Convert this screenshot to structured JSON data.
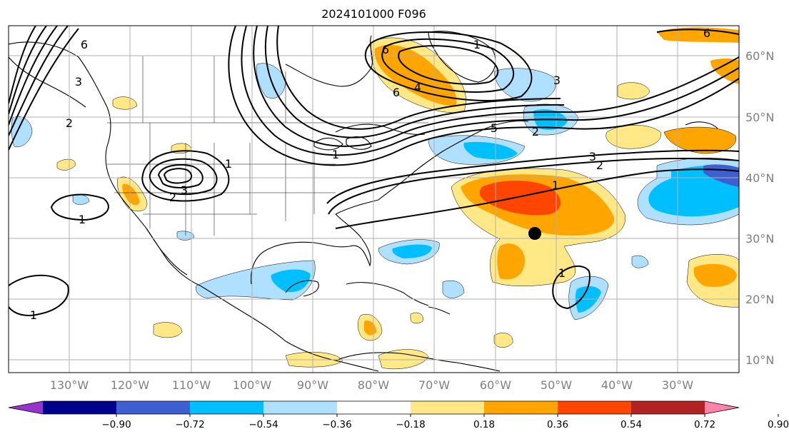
{
  "title": "2024101000 F096",
  "latitude_labels": [
    "60°N",
    "50°N",
    "40°N",
    "30°N",
    "20°N",
    "10°N"
  ],
  "longitude_labels": [
    "130°W",
    "120°W",
    "110°W",
    "100°W",
    "90°W",
    "80°W",
    "70°W",
    "60°W",
    "50°W",
    "40°W",
    "30°W"
  ],
  "colorbar": {
    "levels": [
      "−0.90",
      "−0.72",
      "−0.54",
      "−0.36",
      "−0.18",
      "0.18",
      "0.36",
      "0.54",
      "0.72",
      "0.90"
    ],
    "colors": [
      "#9932cc",
      "#00008b",
      "#3d5fd2",
      "#00bfff",
      "#b0e0ff",
      "#ffffff",
      "#ffe885",
      "#ffa500",
      "#ff4500",
      "#b22222",
      "#ff82ab"
    ]
  },
  "contour_labels": [
    "6",
    "1",
    "6",
    "4",
    "6",
    "5",
    "3",
    "2",
    "1",
    "3",
    "2",
    "3",
    "2",
    "1",
    "1",
    "1",
    "6",
    "1",
    "3",
    "2",
    "1"
  ],
  "marker": {
    "type": "black-dot"
  }
}
